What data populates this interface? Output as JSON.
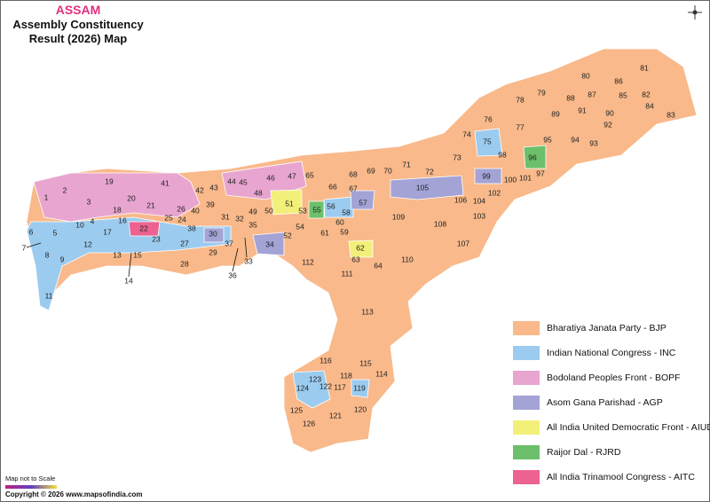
{
  "header": {
    "state": "ASSAM",
    "title_lines": [
      "Assembly Constituency",
      "Result (2026) Map"
    ]
  },
  "map": {
    "constituencies": [
      "1",
      "2",
      "3",
      "4",
      "5",
      "6",
      "7",
      "8",
      "9",
      "10",
      "11",
      "12",
      "13",
      "14",
      "15",
      "16",
      "17",
      "18",
      "19",
      "20",
      "21",
      "22",
      "23",
      "24",
      "25",
      "26",
      "27",
      "28",
      "29",
      "30",
      "31",
      "32",
      "33",
      "34",
      "35",
      "36",
      "37",
      "38",
      "39",
      "40",
      "41",
      "42",
      "43",
      "44",
      "45",
      "46",
      "47",
      "48",
      "49",
      "50",
      "51",
      "52",
      "53",
      "54",
      "55",
      "56",
      "57",
      "58",
      "59",
      "60",
      "61",
      "62",
      "63",
      "64",
      "65",
      "66",
      "67",
      "68",
      "69",
      "70",
      "71",
      "72",
      "73",
      "74",
      "75",
      "76",
      "77",
      "78",
      "79",
      "80",
      "81",
      "82",
      "83",
      "84",
      "85",
      "86",
      "87",
      "88",
      "89",
      "90",
      "91",
      "92",
      "93",
      "94",
      "95",
      "96",
      "97",
      "98",
      "99",
      "100",
      "101",
      "102",
      "103",
      "104",
      "105",
      "106",
      "107",
      "108",
      "109",
      "110",
      "111",
      "112",
      "113",
      "114",
      "115",
      "116",
      "117",
      "118",
      "119",
      "120",
      "121",
      "122",
      "123",
      "124",
      "125",
      "126"
    ]
  },
  "legend": [
    {
      "label": "Bharatiya Janata Party - BJP",
      "color": "#f9b98a"
    },
    {
      "label": "Indian National Congress - INC",
      "color": "#9bcbef"
    },
    {
      "label": "Bodoland Peoples Front - BOPF",
      "color": "#e8a5cf"
    },
    {
      "label": "Asom Gana Parishad - AGP",
      "color": "#a3a3d6"
    },
    {
      "label": "All India United Democratic Front - AIUDF",
      "color": "#f3f07a"
    },
    {
      "label": "Raijor Dal - RJRD",
      "color": "#6cc06b"
    },
    {
      "label": "All India Trinamool Congress - AITC",
      "color": "#ec6291"
    }
  ],
  "footer": {
    "scale_note": "Map not to Scale",
    "copyright": "Copyright © 2026 www.mapsofindia.com"
  }
}
